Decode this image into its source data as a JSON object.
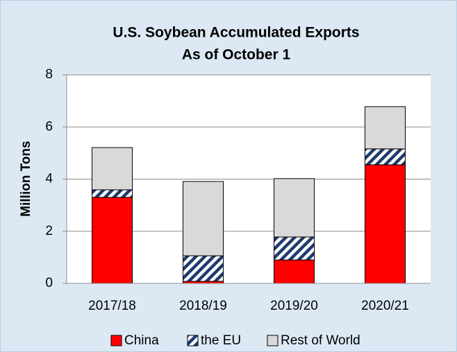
{
  "chart_data": {
    "type": "stacked_bar",
    "title": "U.S. Soybean Accumulated Exports",
    "subtitle": "As of October 1",
    "y_label": "Million Tons",
    "categories": [
      "2017/18",
      "2018/19",
      "2019/20",
      "2020/21"
    ],
    "series": [
      {
        "name": "China",
        "color": "#ff0000",
        "values": [
          3.3,
          0.08,
          0.9,
          4.55
        ]
      },
      {
        "name": "the EU",
        "color": "#1f3a6e",
        "pattern": "hatch",
        "values": [
          0.29,
          0.98,
          0.88,
          0.61
        ]
      },
      {
        "name": "Rest of World",
        "color": "#d9d9d9",
        "values": [
          1.62,
          2.85,
          2.24,
          1.62
        ]
      }
    ],
    "ylim": [
      0,
      8
    ],
    "yticks": [
      0,
      2,
      4,
      6,
      8
    ],
    "grid": true,
    "legend": "bottom"
  }
}
